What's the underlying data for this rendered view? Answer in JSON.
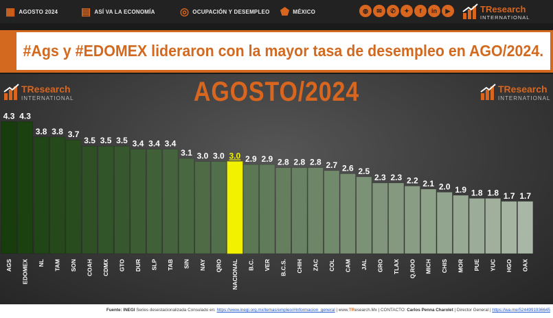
{
  "nav": {
    "items": [
      {
        "label": "AGOSTO 2024",
        "icon": "calendar-icon"
      },
      {
        "label": "ASÍ VA LA ECONOMÍA",
        "icon": "document-icon"
      },
      {
        "label": "OCUPACIÓN Y DESEMPLEO",
        "icon": "handshake-icon"
      },
      {
        "label": "MÉXICO",
        "icon": "mexico-map-icon"
      }
    ],
    "socials": [
      "globe-icon",
      "mail-icon",
      "chat-icon",
      "twitter-icon",
      "facebook-icon",
      "linkedin-icon",
      "youtube-icon"
    ],
    "logo": {
      "name": "TResearch",
      "sub": "INTERNATIONAL"
    }
  },
  "headline": "#Ags y #EDOMEX lideraron con la mayor tasa de desempleo en AGO/2024.",
  "chart_data": {
    "type": "bar",
    "title": "AGOSTO/2024",
    "xlabel": "",
    "ylabel": "",
    "ylim": [
      0,
      4.5
    ],
    "grid": false,
    "legend": "none",
    "categories": [
      "AGS",
      "EDOMEX",
      "NL",
      "TAM",
      "SON",
      "COAH",
      "CDMX",
      "GTO",
      "DUR",
      "SLP",
      "TAB",
      "SIN",
      "NAY",
      "QRO",
      "NACIONAL",
      "B.C.",
      "VER",
      "B.C.S.",
      "CHIH",
      "ZAC",
      "COL",
      "CAM",
      "JAL",
      "GRO",
      "TLAX",
      "Q.ROO",
      "MICH",
      "CHIS",
      "MOR",
      "PUE",
      "YUC",
      "HGO",
      "OAX"
    ],
    "values": [
      4.3,
      4.3,
      3.8,
      3.8,
      3.7,
      3.5,
      3.5,
      3.5,
      3.4,
      3.4,
      3.4,
      3.1,
      3.0,
      3.0,
      3.0,
      2.9,
      2.9,
      2.8,
      2.8,
      2.8,
      2.7,
      2.6,
      2.5,
      2.3,
      2.3,
      2.2,
      2.1,
      2.0,
      1.9,
      1.8,
      1.8,
      1.7,
      1.7
    ],
    "value_labels": [
      "4.3",
      "4.3",
      "3.8",
      "3.8",
      "3.7",
      "3.5",
      "3.5",
      "3.5",
      "3.4",
      "3.4",
      "3.4",
      "3.1",
      "3.0",
      "3.0",
      "3.0",
      "2.9",
      "2.9",
      "2.8",
      "2.8",
      "2.8",
      "2.7",
      "2.6",
      "2.5",
      "2.3",
      "2.3",
      "2.2",
      "2.1",
      "2.0",
      "1.9",
      "1.8",
      "1.8",
      "1.7",
      "1.7"
    ],
    "highlight_category": "NACIONAL",
    "colors": {
      "high": "#173d0c",
      "low": "#a9b8a6",
      "highlight": "#f2f200",
      "panel_title": "#d9661f"
    }
  },
  "footer": {
    "source_label": "Fuente: INEGI",
    "source_text": " Series desestacionalizada Consulado en: ",
    "source_link": "https://www.inegi.org.mx/temas/empleo/#Informacion_general",
    "site_prefix": " | www.",
    "site_brand": "TR",
    "site_rest": "esearch.Mx | CONTACTO: ",
    "contact_name": "Carlos Penna Charolet",
    "contact_role": " | Director General | ",
    "contact_link": "https://wa.me/5244991936645"
  }
}
